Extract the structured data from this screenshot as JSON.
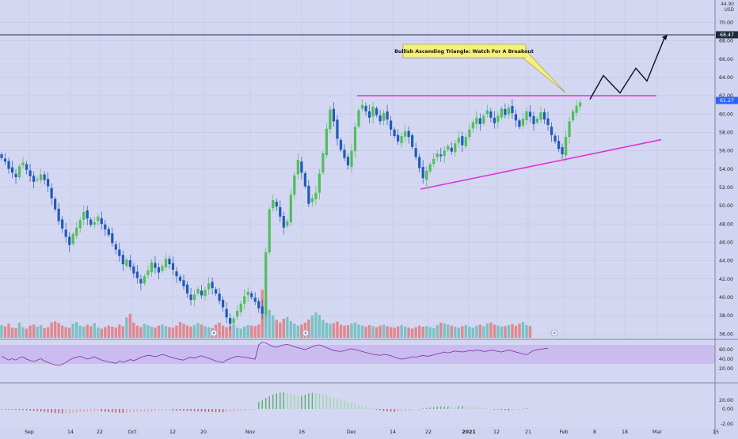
{
  "chart_data": {
    "type": "candlestick",
    "currency": "USD",
    "y_axis_top_label": "44.90",
    "price_axis": {
      "ticks": [
        70.0,
        68.0,
        66.0,
        64.0,
        62.0,
        60.0,
        58.0,
        56.0,
        54.0,
        52.0,
        50.0,
        48.0,
        46.0,
        44.0,
        42.0,
        40.0,
        38.0,
        36.0
      ]
    },
    "price_markers": [
      {
        "label": "68.47",
        "value": 68.47,
        "color": "#1e2a3a"
      },
      {
        "label": "61.27",
        "value": 61.27,
        "color": "#2962ff"
      }
    ],
    "x_axis": {
      "labels": [
        "Sep",
        "14",
        "22",
        "Oct",
        "12",
        "20",
        "Nov",
        "16",
        "Dec",
        "14",
        "22",
        "2021",
        "12",
        "21",
        "Feb",
        "8",
        "18",
        "Mar",
        "15"
      ]
    },
    "annotation": {
      "text": "Bullish Ascending Triangle: Watch For A Breakout"
    },
    "resistance_level": 62.0,
    "support_trendline": {
      "from_price": 51.8,
      "to_price": 57.2
    },
    "projection_path": [
      61.6,
      64.2,
      62.3,
      65.0,
      63.6,
      68.5
    ],
    "rsi": {
      "ticks": [
        60.0,
        40.0,
        20.0
      ],
      "band": [
        30,
        70
      ]
    },
    "macd": {
      "ticks": [
        20.0,
        0.0,
        -2.0
      ]
    },
    "closes": [
      55.2,
      54.8,
      54.0,
      53.6,
      53.1,
      54.3,
      54.7,
      53.9,
      53.2,
      52.6,
      52.9,
      53.4,
      52.8,
      52.1,
      50.8,
      49.6,
      48.3,
      47.5,
      46.6,
      45.7,
      46.9,
      47.6,
      48.4,
      49.3,
      48.6,
      47.9,
      48.2,
      48.8,
      48.0,
      47.4,
      46.8,
      45.9,
      45.2,
      44.5,
      43.6,
      44.1,
      43.3,
      42.6,
      42.1,
      41.5,
      42.3,
      42.9,
      43.8,
      43.2,
      42.7,
      43.4,
      44.2,
      43.6,
      43.0,
      42.3,
      41.8,
      41.2,
      40.4,
      39.7,
      40.3,
      40.9,
      40.2,
      40.8,
      41.5,
      41.0,
      40.4,
      39.6,
      38.9,
      37.8,
      37.1,
      37.7,
      38.5,
      39.3,
      40.1,
      40.6,
      40.0,
      39.5,
      38.8,
      38.2,
      44.9,
      49.6,
      50.6,
      49.9,
      48.8,
      47.6,
      48.3,
      51.2,
      53.3,
      55.0,
      53.6,
      52.1,
      50.2,
      50.8,
      51.4,
      53.5,
      55.7,
      58.4,
      60.5,
      59.2,
      57.3,
      56.1,
      55.2,
      54.4,
      56.0,
      58.6,
      60.4,
      61.0,
      60.3,
      59.6,
      60.8,
      59.9,
      59.2,
      60.1,
      59.4,
      58.3,
      57.6,
      57.0,
      57.6,
      58.1,
      57.5,
      56.4,
      55.3,
      54.1,
      53.0,
      53.8,
      54.5,
      55.1,
      55.7,
      55.4,
      56.0,
      56.5,
      55.9,
      56.8,
      57.4,
      56.6,
      57.5,
      58.3,
      59.1,
      59.6,
      58.9,
      59.8,
      60.4,
      59.6,
      59.0,
      59.8,
      60.6,
      59.9,
      60.7,
      60.1,
      59.3,
      58.6,
      59.5,
      60.3,
      59.7,
      58.9,
      59.5,
      60.2,
      59.4,
      58.8,
      57.7,
      57.0,
      56.2,
      55.6,
      57.5,
      59.2,
      60.3,
      60.9,
      61.27
    ],
    "rsi_values": [
      46,
      42,
      38,
      41,
      38,
      43,
      45,
      40,
      37,
      35,
      38,
      41,
      36,
      33,
      30,
      28,
      27,
      29,
      33,
      38,
      42,
      44,
      46,
      43,
      40,
      42,
      45,
      41,
      38,
      36,
      34,
      33,
      31,
      36,
      33,
      36,
      39,
      37,
      40,
      44,
      46,
      48,
      47,
      45,
      47,
      50,
      48,
      45,
      43,
      41,
      39,
      38,
      42,
      44,
      42,
      45,
      47,
      44,
      42,
      39,
      36,
      34,
      33,
      38,
      41,
      44,
      46,
      45,
      44,
      43,
      41,
      40,
      70,
      76,
      74,
      70,
      66,
      65,
      68,
      70,
      71,
      69,
      66,
      64,
      62,
      60,
      63,
      66,
      69,
      70,
      67,
      64,
      61,
      58,
      57,
      56,
      58,
      60,
      62,
      60,
      58,
      56,
      54,
      52,
      50,
      49,
      48,
      50,
      49,
      47,
      44,
      42,
      40,
      41,
      43,
      45,
      44,
      46,
      48,
      46,
      47,
      49,
      51,
      53,
      55,
      53,
      55,
      57,
      56,
      55,
      56,
      58,
      57,
      59,
      58,
      56,
      57,
      59,
      58,
      56,
      55,
      57,
      59,
      57,
      55,
      53,
      51,
      49,
      54,
      58,
      60,
      61,
      62,
      63
    ],
    "macd_values": [
      -0.1,
      -0.15,
      -0.2,
      -0.25,
      -0.3,
      -0.35,
      -0.4,
      -0.5,
      -0.6,
      -0.7,
      -0.8,
      -0.95,
      -1.1,
      -1.25,
      -1.4,
      -1.5,
      -1.55,
      -1.6,
      -1.55,
      -1.5,
      -1.4,
      -1.3,
      -1.2,
      -1.1,
      -1.0,
      -0.9,
      -0.85,
      -0.8,
      -0.9,
      -1.0,
      -1.1,
      -1.2,
      -1.3,
      -1.35,
      -1.4,
      -1.35,
      -1.3,
      -1.25,
      -1.2,
      -1.15,
      -1.1,
      -1.0,
      -0.9,
      -0.8,
      -0.7,
      -0.6,
      -0.55,
      -0.5,
      -0.55,
      -0.6,
      -0.65,
      -0.7,
      -0.75,
      -0.8,
      -0.85,
      -0.9,
      -0.95,
      -1.0,
      -1.05,
      -1.1,
      -1.15,
      -1.2,
      -1.25,
      -1.2,
      -1.1,
      -1.0,
      -0.85,
      -0.7,
      -0.55,
      -0.45,
      -0.35,
      -0.25,
      2.5,
      3.3,
      4.0,
      4.6,
      5.2,
      5.6,
      5.9,
      6.0,
      5.8,
      5.5,
      5.1,
      4.7,
      4.8,
      5.2,
      5.6,
      5.8,
      5.7,
      5.5,
      5.2,
      4.9,
      4.5,
      4.1,
      3.7,
      3.3,
      2.9,
      2.5,
      2.1,
      1.7,
      1.4,
      1.1,
      0.8,
      0.5,
      0.2,
      -0.1,
      -0.4,
      -0.7,
      -0.9,
      -1.0,
      -1.05,
      -1.0,
      -0.9,
      -0.8,
      -0.6,
      -0.4,
      -0.2,
      0.0,
      0.2,
      0.35,
      0.5,
      0.65,
      0.8,
      0.9,
      0.95,
      1.0,
      0.95,
      0.9,
      1.0,
      1.05,
      0.95,
      0.85,
      0.75,
      0.6,
      0.45,
      0.3,
      0.15,
      0.0,
      -0.1,
      -0.2,
      -0.3,
      -0.4,
      -0.5,
      -0.4,
      -0.25,
      -0.1,
      0.1,
      0.3
    ],
    "volume_values": [
      50,
      45,
      55,
      40,
      38,
      60,
      42,
      36,
      48,
      52,
      44,
      50,
      38,
      42,
      60,
      65,
      58,
      48,
      42,
      40,
      55,
      62,
      48,
      44,
      52,
      46,
      58,
      40,
      36,
      42,
      48,
      44,
      40,
      52,
      45,
      80,
      95,
      60,
      48,
      42,
      55,
      50,
      44,
      40,
      48,
      52,
      46,
      42,
      40,
      48,
      62,
      55,
      48,
      44,
      50,
      58,
      52,
      46,
      42,
      38,
      52,
      60,
      48,
      42,
      46,
      52,
      40,
      36,
      44,
      50,
      48,
      46,
      52,
      190,
      150,
      110,
      88,
      70,
      60,
      75,
      82,
      66,
      56,
      48,
      52,
      60,
      72,
      88,
      100,
      90,
      70,
      60,
      55,
      58,
      64,
      52,
      48,
      50,
      56,
      60,
      52,
      48,
      44,
      50,
      46,
      42,
      48,
      52,
      46,
      42,
      40,
      45,
      50,
      44,
      40,
      36,
      42,
      48,
      44,
      46,
      42,
      38,
      50,
      60,
      56,
      52,
      48,
      44,
      40,
      46,
      50,
      44,
      40,
      48,
      52,
      46,
      56,
      60,
      52,
      48,
      44,
      46,
      50,
      54,
      48,
      56,
      62,
      50,
      46
    ]
  }
}
